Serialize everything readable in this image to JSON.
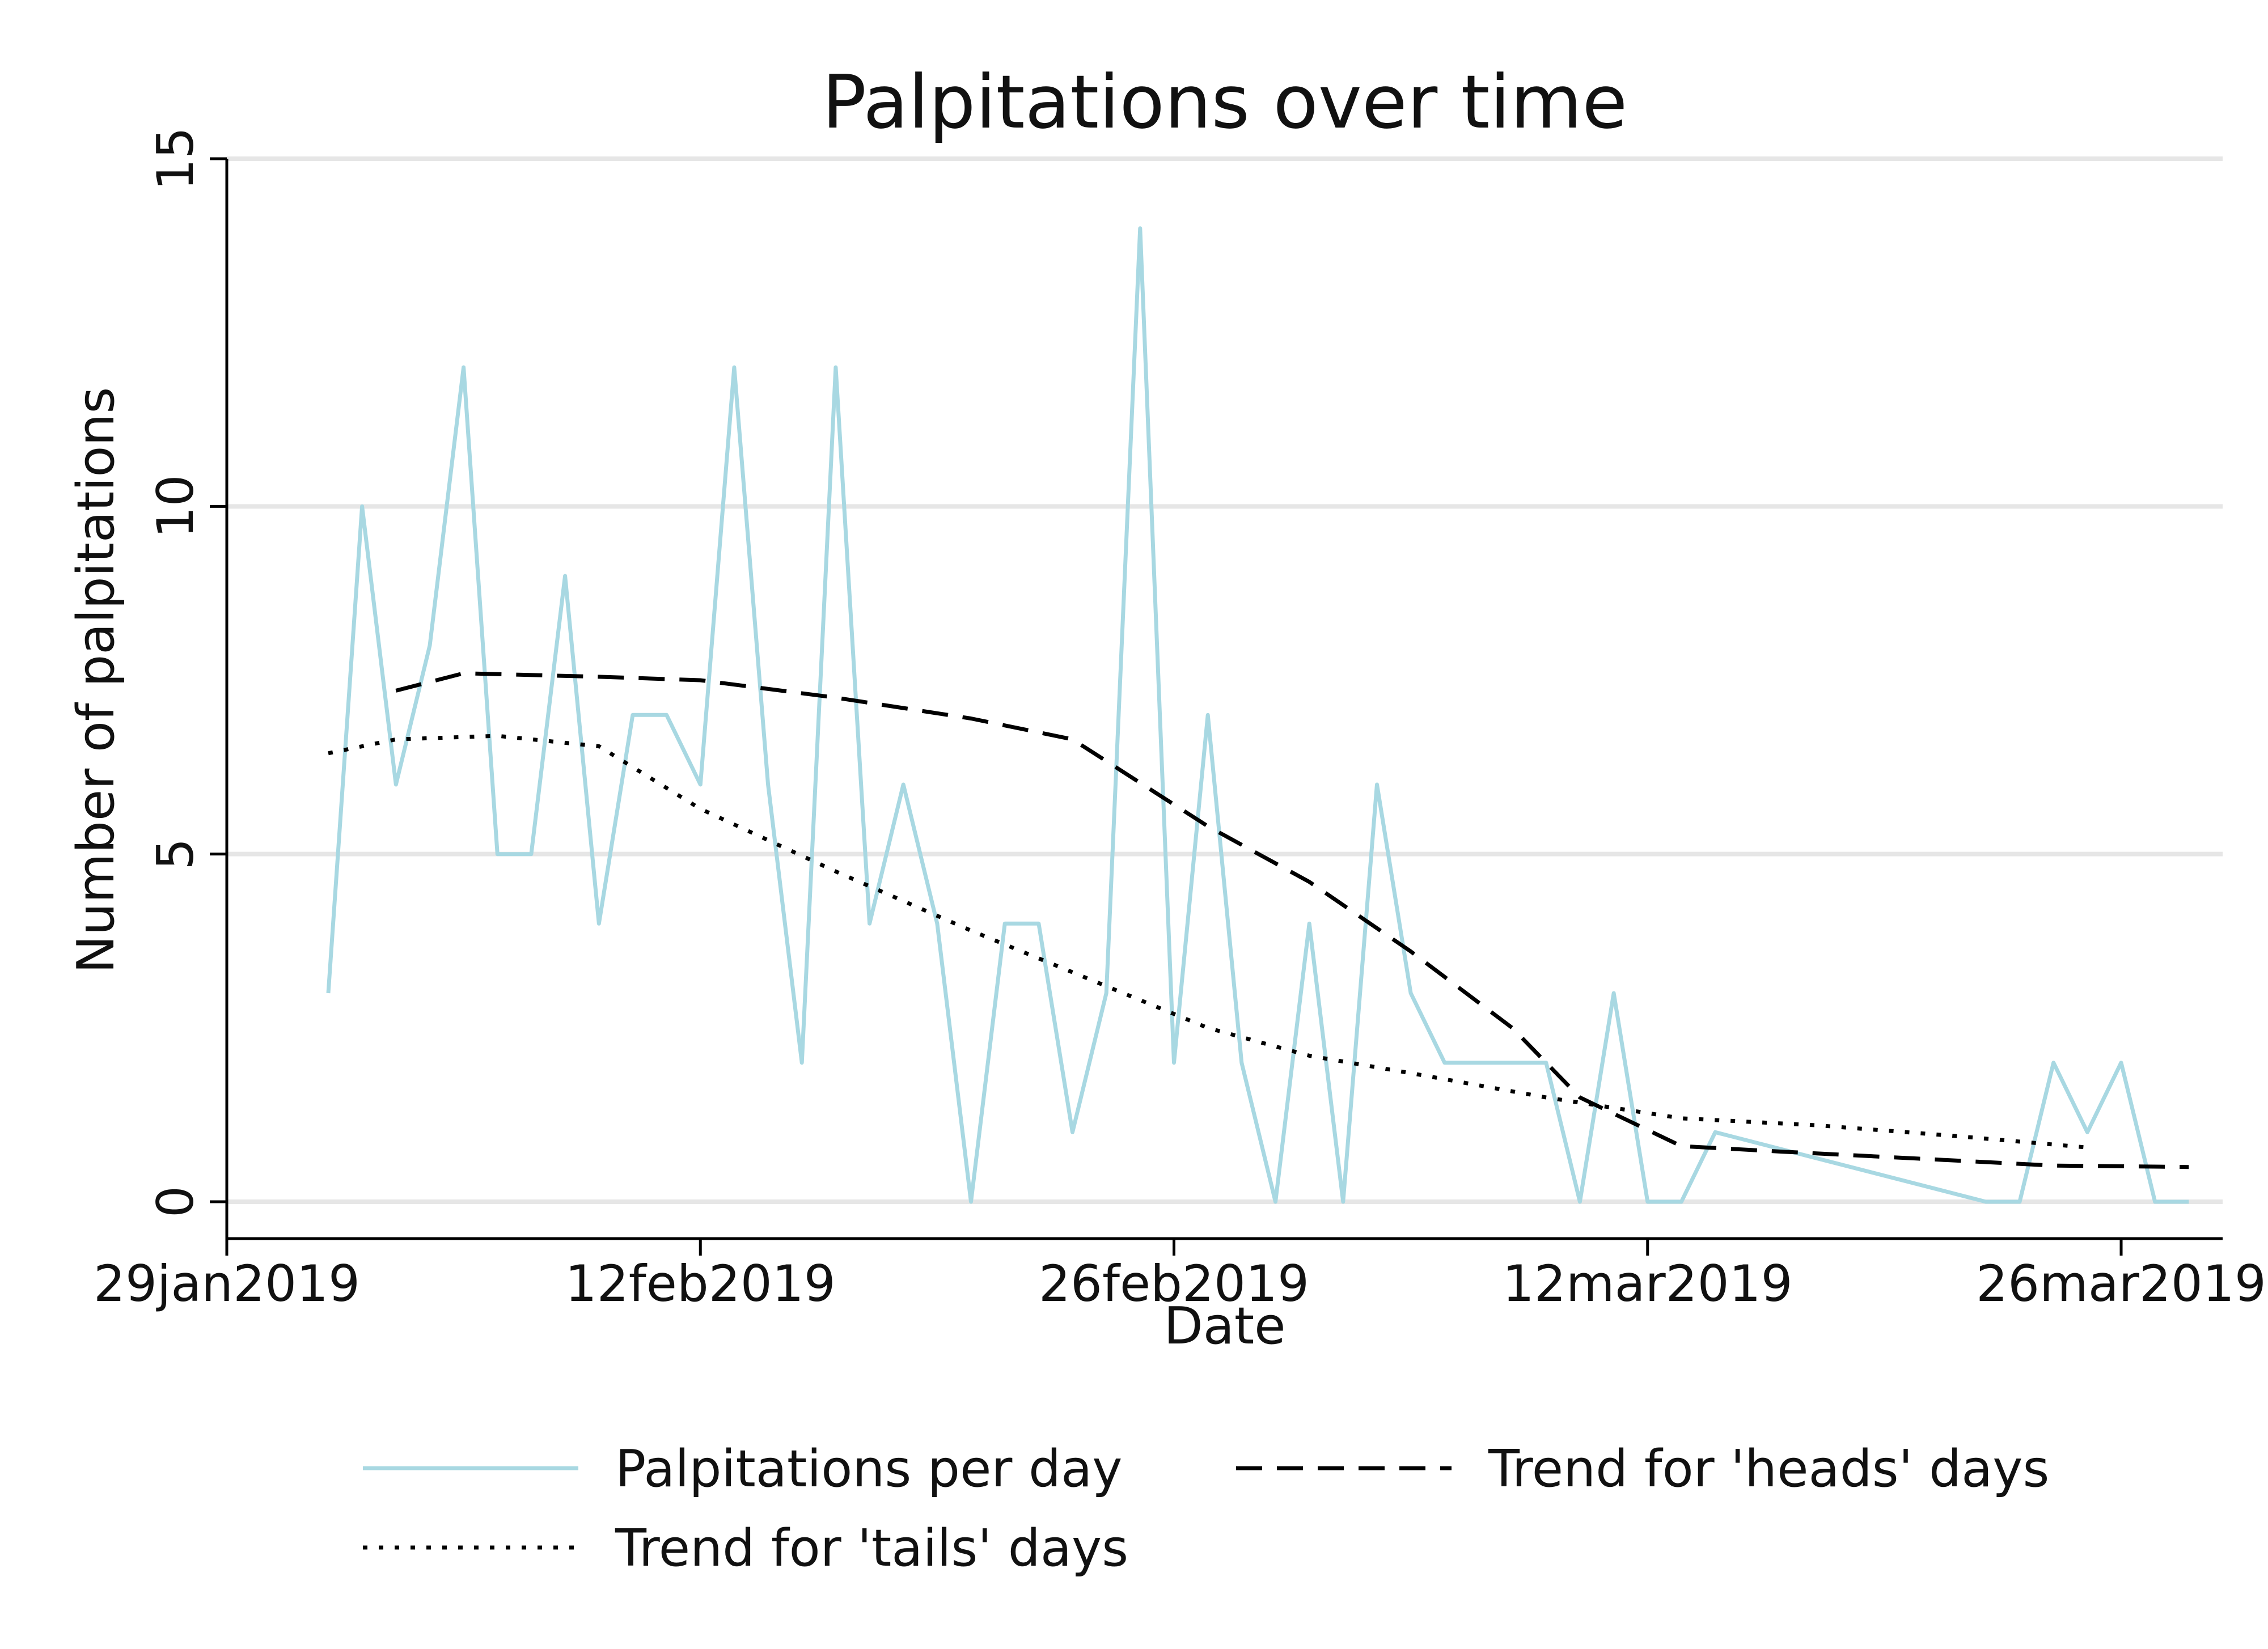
{
  "chart_data": {
    "type": "line",
    "title": "Palpitations over time",
    "xlabel": "Date",
    "ylabel": "Number of palpitations",
    "ylim": [
      0,
      15
    ],
    "xlim": [
      "2019-01-29",
      "2019-03-29"
    ],
    "grid": "horizontal",
    "legend_position": "bottom",
    "x_ticks": [
      "2019-01-29",
      "2019-02-12",
      "2019-02-26",
      "2019-03-12",
      "2019-03-26"
    ],
    "x_tick_labels": [
      "29jan2019",
      "12feb2019",
      "26feb2019",
      "12mar2019",
      "26mar2019"
    ],
    "y_ticks": [
      0,
      5,
      10,
      15
    ],
    "y_tick_labels": [
      "0",
      "5",
      "10",
      "15"
    ],
    "colors": {
      "daily": "#a8d8e2",
      "trend": "#000000",
      "grid": "#e6e6e6"
    },
    "series": [
      {
        "name": "Palpitations per day",
        "style": "solid",
        "x": [
          "2019-02-01",
          "2019-02-02",
          "2019-02-03",
          "2019-02-04",
          "2019-02-05",
          "2019-02-06",
          "2019-02-07",
          "2019-02-08",
          "2019-02-09",
          "2019-02-10",
          "2019-02-11",
          "2019-02-12",
          "2019-02-13",
          "2019-02-14",
          "2019-02-15",
          "2019-02-16",
          "2019-02-17",
          "2019-02-18",
          "2019-02-19",
          "2019-02-20",
          "2019-02-21",
          "2019-02-22",
          "2019-02-23",
          "2019-02-24",
          "2019-02-25",
          "2019-02-26",
          "2019-02-27",
          "2019-02-28",
          "2019-03-01",
          "2019-03-02",
          "2019-03-03",
          "2019-03-04",
          "2019-03-05",
          "2019-03-06",
          "2019-03-07",
          "2019-03-08",
          "2019-03-09",
          "2019-03-10",
          "2019-03-11",
          "2019-03-12",
          "2019-03-13",
          "2019-03-14",
          "2019-03-22",
          "2019-03-23",
          "2019-03-24",
          "2019-03-25",
          "2019-03-26",
          "2019-03-27",
          "2019-03-28"
        ],
        "values": [
          3,
          10,
          6,
          8,
          12,
          5,
          5,
          9,
          4,
          7,
          7,
          6,
          12,
          6,
          2,
          12,
          4,
          6,
          4,
          0,
          4,
          4,
          1,
          3,
          14,
          2,
          7,
          2,
          0,
          4,
          0,
          6,
          3,
          2,
          2,
          2,
          2,
          0,
          3,
          0,
          0,
          1,
          0,
          0,
          2,
          1,
          2,
          0,
          0
        ]
      },
      {
        "name": "Trend for 'heads' days",
        "style": "dashed",
        "x": [
          "2019-02-03",
          "2019-02-05",
          "2019-02-09",
          "2019-02-12",
          "2019-02-16",
          "2019-02-20",
          "2019-02-23",
          "2019-02-27",
          "2019-03-02",
          "2019-03-05",
          "2019-03-08",
          "2019-03-10",
          "2019-03-13",
          "2019-03-16",
          "2019-03-20",
          "2019-03-24",
          "2019-03-28"
        ],
        "values": [
          7.35,
          7.6,
          7.55,
          7.5,
          7.25,
          6.95,
          6.65,
          5.4,
          4.6,
          3.6,
          2.5,
          1.5,
          0.8,
          0.72,
          0.62,
          0.52,
          0.5
        ]
      },
      {
        "name": "Trend for 'tails' days",
        "style": "dotted",
        "x": [
          "2019-02-01",
          "2019-02-03",
          "2019-02-06",
          "2019-02-09",
          "2019-02-12",
          "2019-02-16",
          "2019-02-20",
          "2019-02-24",
          "2019-02-27",
          "2019-03-02",
          "2019-03-05",
          "2019-03-09",
          "2019-03-13",
          "2019-03-17",
          "2019-03-21",
          "2019-03-25"
        ],
        "values": [
          6.45,
          6.65,
          6.7,
          6.55,
          5.65,
          4.75,
          3.9,
          3.1,
          2.5,
          2.1,
          1.85,
          1.5,
          1.2,
          1.1,
          0.95,
          0.78
        ]
      }
    ]
  }
}
